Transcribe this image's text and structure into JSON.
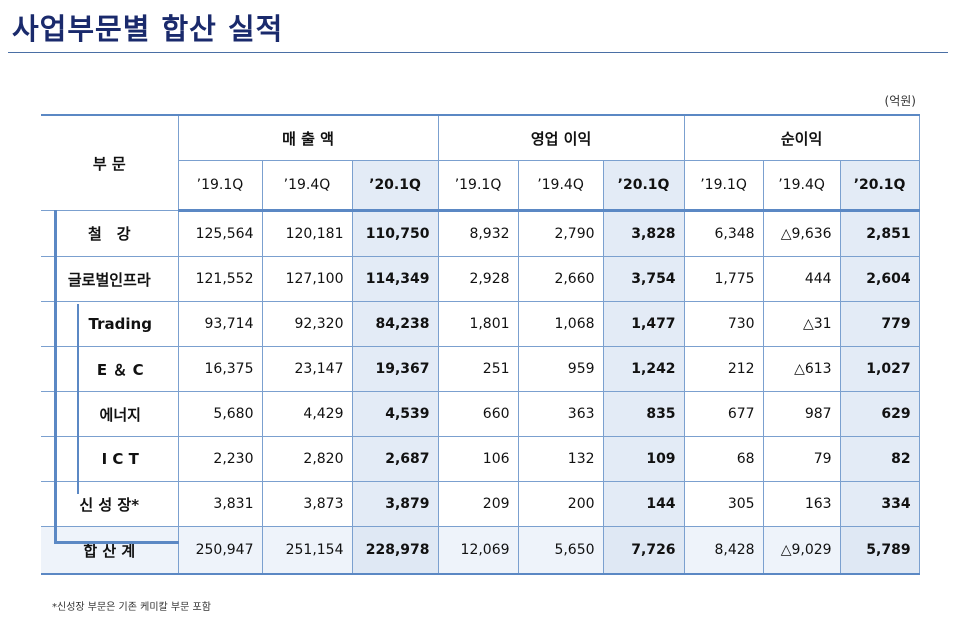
{
  "title": "사업부문별 합산 실적",
  "unit": "(억원)",
  "header": {
    "segment": "부 문",
    "groups": [
      "매 출 액",
      "영업 이익",
      "순이익"
    ],
    "periods": [
      "’19.1Q",
      "’19.4Q",
      "’20.1Q"
    ]
  },
  "rows": [
    {
      "label": "철　강",
      "values": [
        "125,564",
        "120,181",
        "110,750",
        "8,932",
        "2,790",
        "3,828",
        "6,348",
        "△9,636",
        "2,851"
      ]
    },
    {
      "label": "글로벌인프라",
      "values": [
        "121,552",
        "127,100",
        "114,349",
        "2,928",
        "2,660",
        "3,754",
        "1,775",
        "444",
        "2,604"
      ]
    },
    {
      "label": "Trading",
      "values": [
        "93,714",
        "92,320",
        "84,238",
        "1,801",
        "1,068",
        "1,477",
        "730",
        "△31",
        "779"
      ]
    },
    {
      "label": "E ＆ C",
      "values": [
        "16,375",
        "23,147",
        "19,367",
        "251",
        "959",
        "1,242",
        "212",
        "△613",
        "1,027"
      ]
    },
    {
      "label": "에너지",
      "values": [
        "5,680",
        "4,429",
        "4,539",
        "660",
        "363",
        "835",
        "677",
        "987",
        "629"
      ]
    },
    {
      "label": "I C T",
      "values": [
        "2,230",
        "2,820",
        "2,687",
        "106",
        "132",
        "109",
        "68",
        "79",
        "82"
      ]
    },
    {
      "label": "신 성 장*",
      "values": [
        "3,831",
        "3,873",
        "3,879",
        "209",
        "200",
        "144",
        "305",
        "163",
        "334"
      ]
    },
    {
      "label": "합 산 계",
      "values": [
        "250,947",
        "251,154",
        "228,978",
        "12,069",
        "5,650",
        "7,726",
        "8,428",
        "△9,029",
        "5,789"
      ]
    }
  ],
  "footnote": "*신성장 부문은 기존 케미칼 부문 포함"
}
